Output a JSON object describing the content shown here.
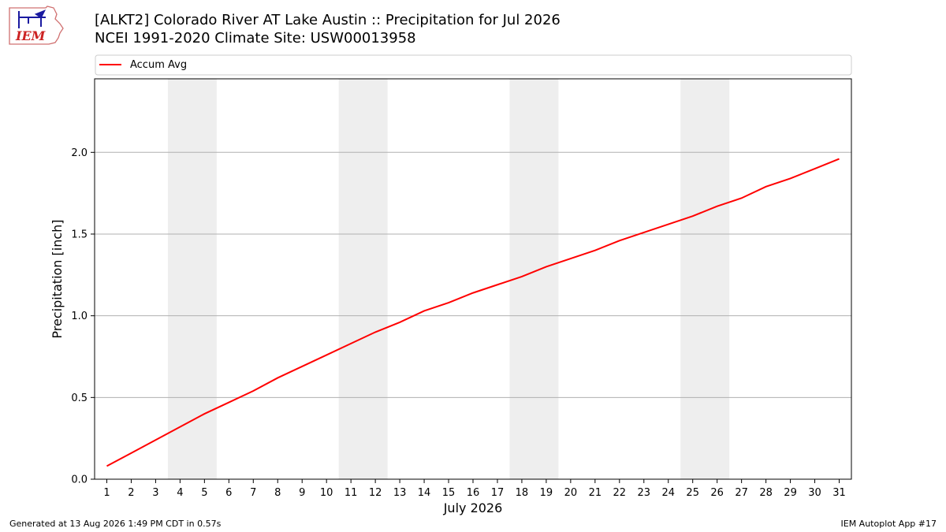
{
  "logo": {
    "text": "IEM"
  },
  "header": {
    "title_line1": "[ALKT2] Colorado River  AT Lake Austin :: Precipitation for Jul 2026",
    "title_line2": "NCEI 1991-2020 Climate Site: USW00013958"
  },
  "footer": {
    "left": "Generated at 13 Aug 2026 1:49 PM CDT in 0.57s",
    "right": "IEM Autoplot App #17"
  },
  "colors": {
    "line": "#ff0000",
    "weekend_band": "#eeeeee",
    "grid": "#b0b0b0"
  },
  "chart_data": {
    "type": "line",
    "title": "[ALKT2] Colorado River  AT Lake Austin :: Precipitation for Jul 2026",
    "subtitle": "NCEI 1991-2020 Climate Site: USW00013958",
    "xlabel": "July 2026",
    "ylabel": "Precipitation [inch]",
    "xlim": [
      0.5,
      31.5
    ],
    "ylim": [
      0.0,
      2.45
    ],
    "xticks": [
      1,
      2,
      3,
      4,
      5,
      6,
      7,
      8,
      9,
      10,
      11,
      12,
      13,
      14,
      15,
      16,
      17,
      18,
      19,
      20,
      21,
      22,
      23,
      24,
      25,
      26,
      27,
      28,
      29,
      30,
      31
    ],
    "yticks": [
      0.0,
      0.5,
      1.0,
      1.5,
      2.0
    ],
    "ytick_labels": [
      "0.0",
      "0.5",
      "1.0",
      "1.5",
      "2.0"
    ],
    "grid": "horizontal",
    "legend_position": "top",
    "weekend_bands": [
      [
        4,
        5
      ],
      [
        11,
        12
      ],
      [
        18,
        19
      ],
      [
        25,
        26
      ]
    ],
    "series": [
      {
        "name": "Accum Avg",
        "color": "#ff0000",
        "x": [
          1,
          2,
          3,
          4,
          5,
          6,
          7,
          8,
          9,
          10,
          11,
          12,
          13,
          14,
          15,
          16,
          17,
          18,
          19,
          20,
          21,
          22,
          23,
          24,
          25,
          26,
          27,
          28,
          29,
          30,
          31
        ],
        "y": [
          0.08,
          0.16,
          0.24,
          0.32,
          0.4,
          0.47,
          0.54,
          0.62,
          0.69,
          0.76,
          0.83,
          0.9,
          0.96,
          1.03,
          1.08,
          1.14,
          1.19,
          1.24,
          1.3,
          1.35,
          1.4,
          1.46,
          1.51,
          1.56,
          1.61,
          1.67,
          1.72,
          1.79,
          1.84,
          1.9,
          1.96
        ]
      }
    ]
  }
}
